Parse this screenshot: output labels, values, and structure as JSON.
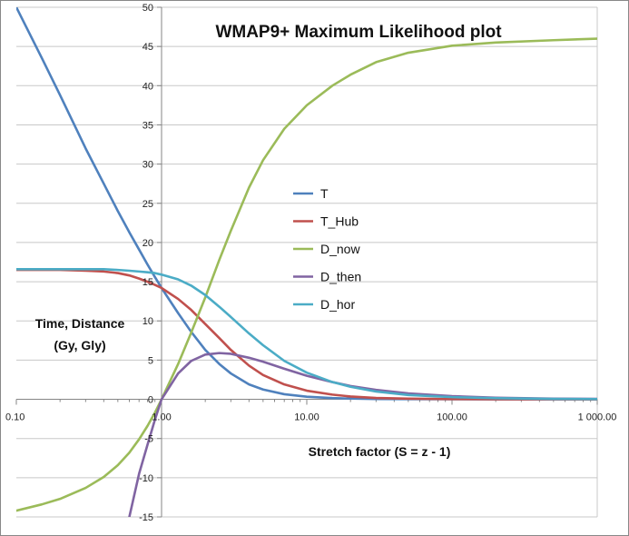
{
  "chart_data": {
    "type": "line",
    "title": "WMAP9+ Maximum Likelihood plot",
    "xlabel": "Stretch factor (S = z - 1)",
    "ylabel_line1": "Time, Distance",
    "ylabel_line2": "(Gy, Gly)",
    "xscale": "log",
    "xlim": [
      0.1,
      1000
    ],
    "ylim": [
      -15,
      50
    ],
    "grid": true,
    "legend_position": "center-right",
    "x_tick_labels": [
      "0.10",
      "1.00",
      "10.00",
      "100.00",
      "1 000.00"
    ],
    "x_tick_values": [
      0.1,
      1,
      10,
      100,
      1000
    ],
    "y_tick_labels": [
      "-15",
      "-10",
      "-5",
      "0",
      "5",
      "10",
      "15",
      "20",
      "25",
      "30",
      "35",
      "40",
      "45",
      "50"
    ],
    "y_tick_values": [
      -15,
      -10,
      -5,
      0,
      5,
      10,
      15,
      20,
      25,
      30,
      35,
      40,
      45,
      50
    ],
    "series": [
      {
        "name": "T",
        "color": "#4f81bd",
        "x": [
          0.1,
          0.15,
          0.2,
          0.3,
          0.4,
          0.5,
          0.6,
          0.7,
          0.8,
          0.9,
          1.0,
          1.3,
          1.6,
          2,
          2.5,
          3,
          4,
          5,
          7,
          10,
          15,
          20,
          30,
          50,
          100,
          200,
          500,
          1000
        ],
        "y": [
          50,
          43.5,
          38.8,
          32,
          27.5,
          24,
          21.3,
          19.1,
          17.2,
          15.6,
          14.2,
          11,
          8.6,
          6.3,
          4.5,
          3.3,
          1.9,
          1.25,
          0.65,
          0.33,
          0.16,
          0.09,
          0.04,
          0.02,
          0.005,
          0.002,
          0.0005,
          0.0002
        ]
      },
      {
        "name": "T_Hub",
        "color": "#c0504d",
        "x": [
          0.1,
          0.2,
          0.3,
          0.4,
          0.5,
          0.6,
          0.7,
          0.8,
          0.9,
          1.0,
          1.3,
          1.6,
          2,
          2.5,
          3,
          4,
          5,
          7,
          10,
          15,
          20,
          30,
          50,
          100,
          200,
          500,
          1000
        ],
        "y": [
          16.5,
          16.5,
          16.4,
          16.3,
          16.1,
          15.8,
          15.4,
          15,
          14.6,
          14.2,
          12.8,
          11.4,
          9.6,
          7.8,
          6.3,
          4.3,
          3.1,
          1.9,
          1.1,
          0.6,
          0.36,
          0.17,
          0.08,
          0.03,
          0.01,
          0.003,
          0.001
        ]
      },
      {
        "name": "D_now",
        "color": "#9bbb59",
        "x": [
          0.1,
          0.15,
          0.2,
          0.3,
          0.4,
          0.5,
          0.6,
          0.7,
          0.8,
          0.9,
          1.0,
          1.3,
          1.6,
          2,
          2.5,
          3,
          4,
          5,
          7,
          10,
          15,
          20,
          30,
          50,
          100,
          200,
          500,
          1000
        ],
        "y": [
          -14.2,
          -13.4,
          -12.7,
          -11.3,
          -9.9,
          -8.4,
          -6.8,
          -5.1,
          -3.4,
          -1.7,
          0,
          4.5,
          8.5,
          13,
          17.8,
          21.5,
          27,
          30.5,
          34.5,
          37.5,
          40,
          41.4,
          43,
          44.2,
          45.1,
          45.5,
          45.8,
          46
        ]
      },
      {
        "name": "D_then",
        "color": "#8064a2",
        "x": [
          0.6,
          0.7,
          0.8,
          0.9,
          1.0,
          1.3,
          1.6,
          2,
          2.5,
          3,
          4,
          5,
          7,
          10,
          15,
          20,
          30,
          50,
          100,
          200,
          500,
          1000
        ],
        "y": [
          -15,
          -9.5,
          -5.8,
          -2.6,
          0,
          3.3,
          4.9,
          5.7,
          5.9,
          5.8,
          5.3,
          4.8,
          3.9,
          3,
          2.2,
          1.7,
          1.2,
          0.75,
          0.4,
          0.2,
          0.09,
          0.05
        ]
      },
      {
        "name": "D_hor",
        "color": "#4bacc6",
        "x": [
          0.1,
          0.2,
          0.3,
          0.4,
          0.5,
          0.6,
          0.7,
          0.8,
          0.9,
          1.0,
          1.3,
          1.6,
          2,
          2.5,
          3,
          4,
          5,
          7,
          10,
          15,
          20,
          30,
          50,
          100,
          200,
          500,
          1000
        ],
        "y": [
          16.6,
          16.6,
          16.6,
          16.6,
          16.5,
          16.4,
          16.3,
          16.2,
          16.1,
          15.9,
          15.3,
          14.5,
          13.3,
          11.8,
          10.5,
          8.4,
          6.9,
          4.9,
          3.4,
          2.2,
          1.6,
          1,
          0.55,
          0.28,
          0.14,
          0.06,
          0.03
        ]
      }
    ]
  }
}
